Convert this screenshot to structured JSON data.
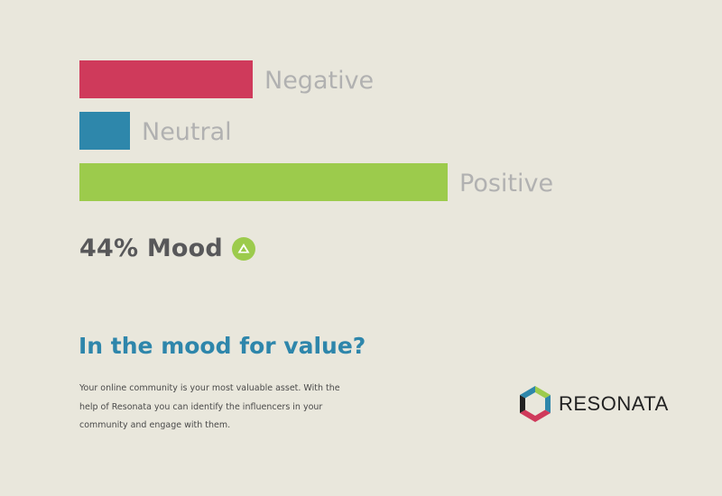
{
  "chart_data": {
    "type": "bar",
    "orientation": "horizontal",
    "categories": [
      "Negative",
      "Neutral",
      "Positive"
    ],
    "values": [
      24,
      7,
      51
    ],
    "colors": [
      "#cf3a5b",
      "#2e87ab",
      "#9ccb4c"
    ],
    "label_color": "#b1b1b1",
    "xlim": [
      0,
      100
    ]
  },
  "mood": {
    "text": "44% Mood",
    "icon": "triangle-up-icon",
    "icon_color": "#9ccb4c"
  },
  "headline": "In the mood for value?",
  "body": "Your online community is your most valuable asset. With the help of Resonata you can identify the influencers in your community and engage with them.",
  "logo": {
    "text": "RESONATA",
    "icon": "resonata-logo-mark"
  }
}
